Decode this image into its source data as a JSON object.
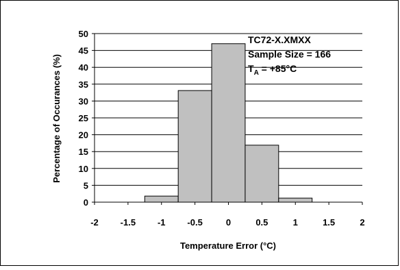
{
  "chart_data": {
    "type": "bar",
    "title": "",
    "xlabel": "Temperature Error (°C)",
    "ylabel": "Percentage of Occurances (%)",
    "xlim": [
      -2,
      2
    ],
    "ylim": [
      0,
      50
    ],
    "x_ticks": [
      "-2",
      "-1.5",
      "-1",
      "-0.5",
      "0",
      "0.5",
      "1",
      "1.5",
      "2"
    ],
    "y_ticks": [
      "0",
      "5",
      "10",
      "15",
      "20",
      "25",
      "30",
      "35",
      "40",
      "45",
      "50"
    ],
    "grid": true,
    "bins": [
      {
        "x_start": -1.25,
        "x_end": -0.75,
        "value": 1.8
      },
      {
        "x_start": -0.75,
        "x_end": -0.25,
        "value": 33.1
      },
      {
        "x_start": -0.25,
        "x_end": 0.25,
        "value": 47.0
      },
      {
        "x_start": 0.25,
        "x_end": 0.75,
        "value": 16.9
      },
      {
        "x_start": 0.75,
        "x_end": 1.25,
        "value": 1.2
      }
    ],
    "bar_color": "#c0c0c0",
    "annotation": {
      "line1": "TC72-X.XMXX",
      "line2": "Sample Size = 166",
      "line3_main": "T",
      "line3_sub": "A",
      "line3_rest": " = +85°C"
    }
  }
}
